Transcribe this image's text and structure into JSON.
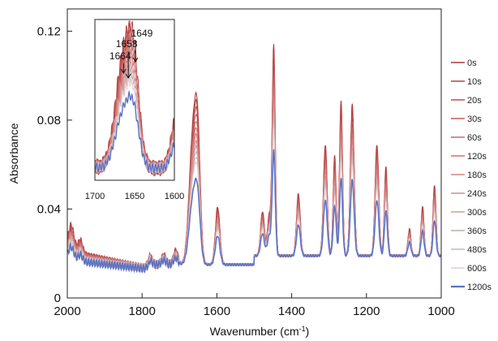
{
  "chart_data": {
    "type": "line",
    "xlabel": "Wavenumber (cm",
    "xlabel_sup": "-1",
    "xlabel_tail": ")",
    "ylabel": "Absorbance",
    "xlim": [
      2000,
      1000
    ],
    "ylim": [
      0,
      0.13
    ],
    "xticks": [
      2000,
      1800,
      1600,
      1400,
      1200,
      1000
    ],
    "yticks": [
      0,
      0.04,
      0.08,
      0.12
    ],
    "ytick_labels": [
      "0",
      "0.04",
      "0.08",
      "0.12"
    ],
    "legend_position": "right",
    "series": [
      {
        "name": "0s",
        "color": "#b03a3a",
        "scale": 1.0
      },
      {
        "name": "10s",
        "color": "#b54444",
        "scale": 0.96
      },
      {
        "name": "20s",
        "color": "#bc5050",
        "scale": 0.92
      },
      {
        "name": "30s",
        "color": "#c25c5c",
        "scale": 0.88
      },
      {
        "name": "60s",
        "color": "#c86868",
        "scale": 0.84
      },
      {
        "name": "120s",
        "color": "#ce7474",
        "scale": 0.8
      },
      {
        "name": "180s",
        "color": "#d48080",
        "scale": 0.76
      },
      {
        "name": "240s",
        "color": "#d98b8b",
        "scale": 0.72
      },
      {
        "name": "300s",
        "color": "#cf9d9d",
        "scale": 0.69
      },
      {
        "name": "360s",
        "color": "#c4aaaa",
        "scale": 0.66
      },
      {
        "name": "480s",
        "color": "#d4b4b4",
        "scale": 0.63
      },
      {
        "name": "600s",
        "color": "#e8cccc",
        "scale": 0.6
      },
      {
        "name": "1200s",
        "color": "#5b72c4",
        "scale": 0.5
      }
    ],
    "peaks": [
      {
        "x": 1990,
        "h": 0.012,
        "w": 8
      },
      {
        "x": 1965,
        "h": 0.006,
        "w": 6
      },
      {
        "x": 1780,
        "h": 0.004,
        "w": 6
      },
      {
        "x": 1742,
        "h": 0.004,
        "w": 6
      },
      {
        "x": 1710,
        "h": 0.006,
        "w": 6
      },
      {
        "x": 1664,
        "h": 0.058,
        "w": 10
      },
      {
        "x": 1651,
        "h": 0.045,
        "w": 7
      },
      {
        "x": 1598,
        "h": 0.026,
        "w": 6
      },
      {
        "x": 1478,
        "h": 0.02,
        "w": 5
      },
      {
        "x": 1460,
        "h": 0.018,
        "w": 5
      },
      {
        "x": 1448,
        "h": 0.094,
        "w": 4
      },
      {
        "x": 1382,
        "h": 0.028,
        "w": 5
      },
      {
        "x": 1310,
        "h": 0.05,
        "w": 5
      },
      {
        "x": 1285,
        "h": 0.045,
        "w": 4
      },
      {
        "x": 1268,
        "h": 0.07,
        "w": 4
      },
      {
        "x": 1238,
        "h": 0.068,
        "w": 5
      },
      {
        "x": 1172,
        "h": 0.05,
        "w": 5
      },
      {
        "x": 1148,
        "h": 0.04,
        "w": 4
      },
      {
        "x": 1085,
        "h": 0.012,
        "w": 4
      },
      {
        "x": 1050,
        "h": 0.022,
        "w": 4
      },
      {
        "x": 1018,
        "h": 0.032,
        "w": 4
      }
    ],
    "inset": {
      "xlim": [
        1700,
        1600
      ],
      "xticks": [
        1700,
        1650,
        1600
      ],
      "annotations": [
        "1664",
        "1658",
        "1649"
      ],
      "annotation_x": [
        1664,
        1658,
        1649
      ]
    }
  }
}
